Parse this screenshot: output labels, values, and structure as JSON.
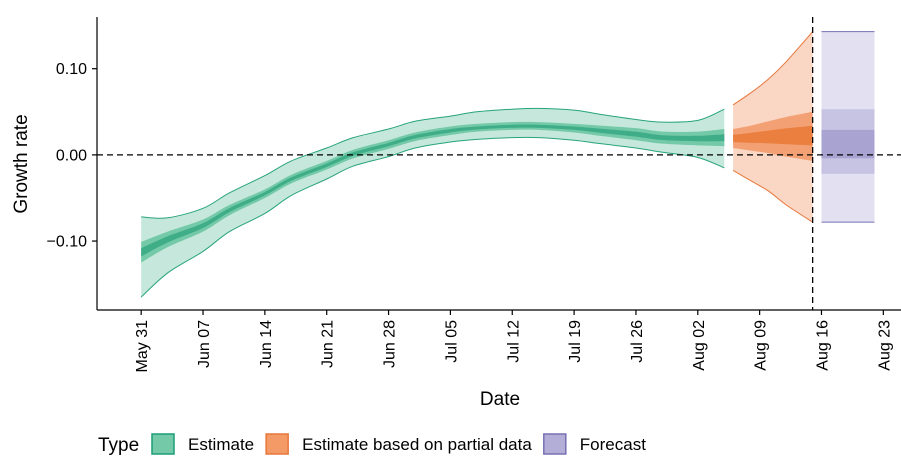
{
  "chart_data": {
    "type": "area",
    "xlabel": "Date",
    "ylabel": "Growth rate",
    "ylim": [
      -0.18,
      0.16
    ],
    "xlim": [
      "2021-05-26",
      "2021-08-25"
    ],
    "x_ticks": [
      "May 31",
      "Jun 07",
      "Jun 14",
      "Jun 21",
      "Jun 28",
      "Jul 05",
      "Jul 12",
      "Jul 19",
      "Jul 26",
      "Aug 02",
      "Aug 09",
      "Aug 16",
      "Aug 23"
    ],
    "x_tick_dates": [
      "2021-05-31",
      "2021-06-07",
      "2021-06-14",
      "2021-06-21",
      "2021-06-28",
      "2021-07-05",
      "2021-07-12",
      "2021-07-19",
      "2021-07-26",
      "2021-08-02",
      "2021-08-09",
      "2021-08-16",
      "2021-08-23"
    ],
    "y_ticks": [
      -0.1,
      0.0,
      0.1
    ],
    "y_tick_labels": [
      "−0.10",
      "0.00",
      "0.10"
    ],
    "reference_lines": {
      "y": 0.0,
      "x": "2021-08-15",
      "style": "dashed"
    },
    "legend": {
      "title": "Type",
      "position": "bottom",
      "entries": [
        "Estimate",
        "Estimate based on partial data",
        "Forecast"
      ]
    },
    "series": [
      {
        "name": "Estimate",
        "color": "#1b9e77",
        "x": [
          "2021-05-31",
          "2021-06-03",
          "2021-06-07",
          "2021-06-10",
          "2021-06-14",
          "2021-06-17",
          "2021-06-21",
          "2021-06-24",
          "2021-06-28",
          "2021-07-01",
          "2021-07-05",
          "2021-07-08",
          "2021-07-12",
          "2021-07-15",
          "2021-07-19",
          "2021-07-22",
          "2021-07-26",
          "2021-07-29",
          "2021-08-02",
          "2021-08-05"
        ],
        "median": [
          -0.113,
          -0.098,
          -0.082,
          -0.064,
          -0.045,
          -0.028,
          -0.012,
          0.001,
          0.012,
          0.021,
          0.028,
          0.031,
          0.033,
          0.033,
          0.031,
          0.028,
          0.024,
          0.02,
          0.019,
          0.02
        ],
        "lower_50": [
          -0.125,
          -0.107,
          -0.089,
          -0.07,
          -0.05,
          -0.033,
          -0.017,
          -0.004,
          0.007,
          0.016,
          0.023,
          0.027,
          0.029,
          0.029,
          0.026,
          0.022,
          0.017,
          0.013,
          0.011,
          0.01
        ],
        "upper_50": [
          -0.101,
          -0.089,
          -0.075,
          -0.058,
          -0.04,
          -0.023,
          -0.007,
          0.006,
          0.017,
          0.026,
          0.033,
          0.036,
          0.038,
          0.038,
          0.036,
          0.034,
          0.031,
          0.027,
          0.027,
          0.03
        ],
        "lower_90": [
          -0.165,
          -0.137,
          -0.112,
          -0.089,
          -0.068,
          -0.047,
          -0.028,
          -0.013,
          -0.002,
          0.008,
          0.015,
          0.018,
          0.02,
          0.02,
          0.017,
          0.013,
          0.008,
          0.003,
          -0.003,
          -0.015
        ],
        "upper_90": [
          -0.072,
          -0.073,
          -0.062,
          -0.044,
          -0.024,
          -0.007,
          0.008,
          0.02,
          0.03,
          0.039,
          0.045,
          0.05,
          0.053,
          0.054,
          0.052,
          0.047,
          0.041,
          0.038,
          0.04,
          0.053
        ]
      },
      {
        "name": "Estimate based on partial data",
        "color": "#d95f02",
        "x": [
          "2021-08-06",
          "2021-08-08",
          "2021-08-10",
          "2021-08-12",
          "2021-08-15"
        ],
        "median": [
          0.019,
          0.02,
          0.021,
          0.022,
          0.023
        ],
        "lower_50": [
          0.008,
          0.005,
          0.002,
          -0.002,
          -0.007
        ],
        "upper_50": [
          0.03,
          0.034,
          0.039,
          0.044,
          0.05
        ],
        "lower_90": [
          -0.018,
          -0.03,
          -0.042,
          -0.058,
          -0.078
        ],
        "upper_90": [
          0.058,
          0.072,
          0.088,
          0.108,
          0.143
        ]
      },
      {
        "name": "Forecast",
        "color": "#7570b3",
        "x": [
          "2021-08-16",
          "2021-08-22"
        ],
        "median": [
          0.012,
          0.012
        ],
        "lower_50": [
          -0.004,
          -0.004
        ],
        "upper_50": [
          0.029,
          0.029
        ],
        "lower_70": [
          -0.022,
          -0.022
        ],
        "upper_70": [
          0.053,
          0.053
        ],
        "lower_90": [
          -0.078,
          -0.078
        ],
        "upper_90": [
          0.143,
          0.143
        ]
      }
    ]
  }
}
